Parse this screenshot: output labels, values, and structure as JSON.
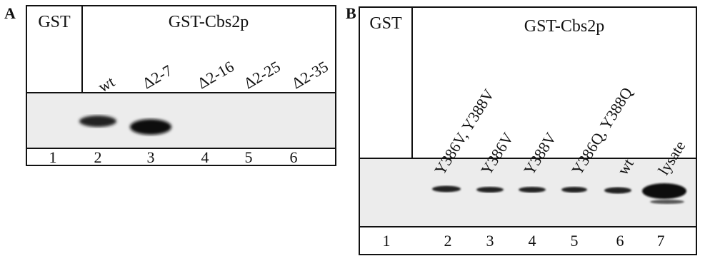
{
  "panels": [
    {
      "label": "A",
      "control": "GST",
      "sample": "GST-Cbs2p",
      "lanes": [
        "wt",
        "Δ2-7",
        "Δ2-16",
        "Δ2-25",
        "Δ2-35"
      ],
      "lane_numbers": [
        "1",
        "2",
        "3",
        "4",
        "5",
        "6"
      ]
    },
    {
      "label": "B",
      "control": "GST",
      "sample": "GST-Cbs2p",
      "lanes": [
        "Y386V, Y388V",
        "Y386V",
        "Y388V",
        "Y386Q, Y388Q",
        "wt",
        "lysate"
      ],
      "lane_numbers": [
        "1",
        "2",
        "3",
        "4",
        "5",
        "6",
        "7"
      ]
    }
  ]
}
